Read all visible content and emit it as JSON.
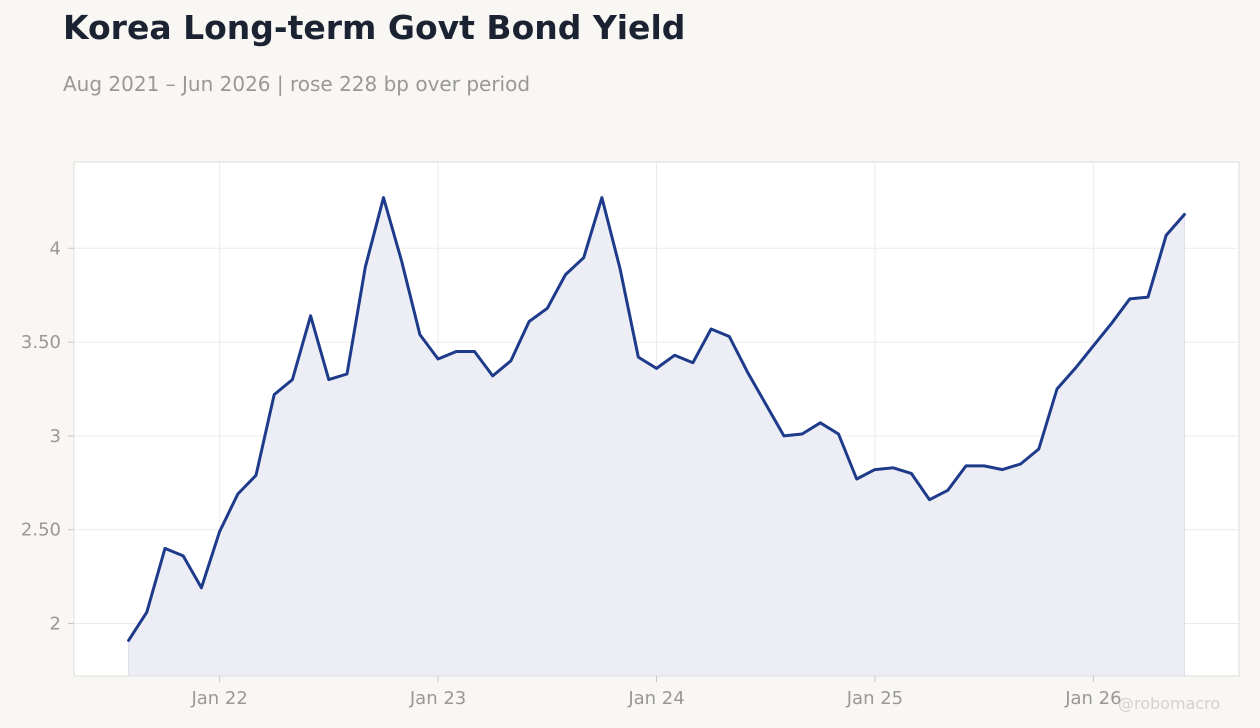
{
  "header": {
    "title": "Korea Long-term Govt Bond Yield",
    "subtitle": "Aug 2021 – Jun 2026 | rose 228 bp over period"
  },
  "watermark": "@robomacro",
  "colors": {
    "line": "#1e3a8a",
    "area_fill": "#edeef5",
    "plot_bg": "#ffffff",
    "page_bg": "#f8f7f4",
    "grid": "#ecebe8",
    "tick_text": "#9a9893"
  },
  "chart_data": {
    "type": "area",
    "title": "Korea Long-term Govt Bond Yield",
    "xlabel": "",
    "ylabel": "",
    "grid": true,
    "x_start": "2021-08",
    "x": [
      "2021-08",
      "2021-09",
      "2021-10",
      "2021-11",
      "2021-12",
      "2022-01",
      "2022-02",
      "2022-03",
      "2022-04",
      "2022-05",
      "2022-06",
      "2022-07",
      "2022-08",
      "2022-09",
      "2022-10",
      "2022-11",
      "2022-12",
      "2023-01",
      "2023-02",
      "2023-03",
      "2023-04",
      "2023-05",
      "2023-06",
      "2023-07",
      "2023-08",
      "2023-09",
      "2023-10",
      "2023-11",
      "2023-12",
      "2024-01",
      "2024-02",
      "2024-03",
      "2024-04",
      "2024-05",
      "2024-06",
      "2024-07",
      "2024-08",
      "2024-09",
      "2024-10",
      "2024-11",
      "2024-12",
      "2025-01",
      "2025-02",
      "2025-03",
      "2025-04",
      "2025-05",
      "2025-06",
      "2025-07",
      "2025-08",
      "2025-09",
      "2025-10",
      "2025-11",
      "2025-12",
      "2026-01",
      "2026-02",
      "2026-03",
      "2026-04",
      "2026-05",
      "2026-06"
    ],
    "series": [
      {
        "values": [
          1.91,
          2.06,
          2.4,
          2.36,
          2.19,
          2.49,
          2.69,
          2.79,
          3.22,
          3.3,
          3.64,
          3.3,
          3.33,
          3.9,
          4.27,
          3.93,
          3.54,
          3.41,
          3.45,
          3.45,
          3.32,
          3.4,
          3.61,
          3.68,
          3.86,
          3.95,
          4.27,
          3.89,
          3.42,
          3.36,
          3.43,
          3.39,
          3.57,
          3.53,
          3.34,
          3.17,
          3.0,
          3.01,
          3.07,
          3.01,
          2.77,
          2.82,
          2.83,
          2.8,
          2.66,
          2.71,
          2.84,
          2.84,
          2.82,
          2.85,
          2.93,
          3.25,
          3.36,
          3.48,
          3.6,
          3.73,
          3.74,
          4.07,
          4.18
        ]
      }
    ],
    "x_ticks": [
      "Jan 22",
      "Jan 23",
      "Jan 24",
      "Jan 25",
      "Jan 26"
    ],
    "x_tick_months": [
      "2022-01",
      "2023-01",
      "2024-01",
      "2025-01",
      "2026-01"
    ],
    "y_ticks": [
      2,
      2.5,
      3,
      3.5,
      4
    ],
    "y_tick_labels": [
      "2",
      "2.50",
      "3",
      "3.50",
      "4"
    ],
    "ylim": [
      1.72,
      4.46
    ],
    "xlim": [
      "2021-05",
      "2026-09"
    ]
  }
}
